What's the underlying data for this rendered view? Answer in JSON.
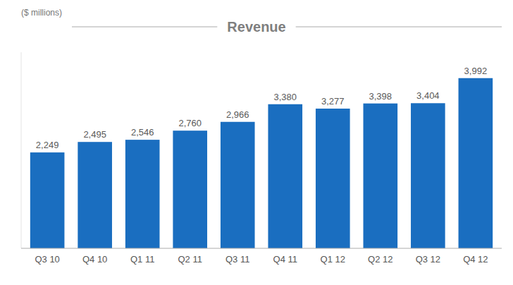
{
  "chart_data": {
    "type": "bar",
    "title": "Revenue",
    "subtitle": "($ millions)",
    "categories": [
      "Q3 10",
      "Q4 10",
      "Q1 11",
      "Q2 11",
      "Q3 11",
      "Q4 11",
      "Q1 12",
      "Q2 12",
      "Q3 12",
      "Q4 12"
    ],
    "values": [
      2249,
      2495,
      2546,
      2760,
      2966,
      3380,
      3277,
      3398,
      3404,
      3992
    ],
    "value_labels": [
      "2,249",
      "2,495",
      "2,546",
      "2,760",
      "2,966",
      "3,380",
      "3,277",
      "3,398",
      "3,404",
      "3,992"
    ],
    "color": "#1a6ec0",
    "ylim": [
      0,
      4600
    ],
    "data_labels": true,
    "tick_labels": "x"
  }
}
